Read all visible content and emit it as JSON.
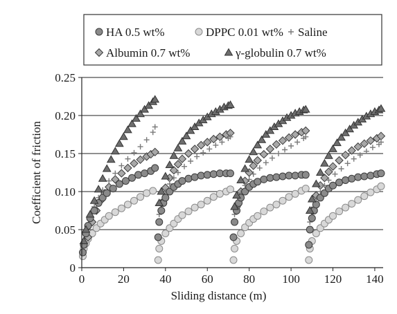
{
  "chart_data": {
    "type": "scatter",
    "xlabel": "Sliding distance (m)",
    "ylabel": "Coefficient of friction",
    "xlim": [
      0,
      144
    ],
    "ylim": [
      0,
      0.25
    ],
    "x_ticks": [
      "0",
      "20",
      "40",
      "60",
      "80",
      "100",
      "120",
      "140"
    ],
    "x_tick_values": [
      0,
      20,
      40,
      60,
      80,
      100,
      120,
      140
    ],
    "y_ticks": [
      "0",
      "0.05",
      "0.10",
      "0.15",
      "0.20",
      "0.25"
    ],
    "y_tick_values": [
      0,
      0.05,
      0.1,
      0.15,
      0.2,
      0.25
    ],
    "grid": "horizontal",
    "legend_position": "top",
    "segments": [
      [
        0,
        36
      ],
      [
        36,
        72
      ],
      [
        72,
        108
      ],
      [
        108,
        144
      ]
    ],
    "series": [
      {
        "name": "HA 0.5 wt%",
        "marker": "circle-dark",
        "color": "#8a8a8a",
        "segments": [
          {
            "x": [
              0.5,
              1,
              2,
              3,
              4,
              6,
              8,
              10,
              12,
              15,
              18,
              21,
              24,
              27,
              30,
              33,
              35
            ],
            "y": [
              0.02,
              0.03,
              0.045,
              0.055,
              0.065,
              0.075,
              0.085,
              0.092,
              0.098,
              0.104,
              0.11,
              0.114,
              0.118,
              0.122,
              0.124,
              0.127,
              0.131
            ]
          },
          {
            "x": [
              36.5,
              37,
              38,
              39,
              40,
              42,
              44,
              46,
              48,
              51,
              54,
              57,
              60,
              63,
              66,
              69,
              71
            ],
            "y": [
              0.04,
              0.06,
              0.075,
              0.085,
              0.092,
              0.1,
              0.106,
              0.11,
              0.114,
              0.117,
              0.119,
              0.121,
              0.122,
              0.123,
              0.124,
              0.124,
              0.124
            ]
          },
          {
            "x": [
              72.5,
              73,
              74,
              75,
              76,
              78,
              80,
              82,
              84,
              87,
              90,
              93,
              96,
              99,
              102,
              105,
              107
            ],
            "y": [
              0.04,
              0.06,
              0.075,
              0.085,
              0.092,
              0.1,
              0.106,
              0.11,
              0.113,
              0.116,
              0.118,
              0.119,
              0.12,
              0.121,
              0.121,
              0.122,
              0.122
            ]
          },
          {
            "x": [
              108.5,
              109,
              110,
              111,
              112,
              114,
              116,
              118,
              120,
              123,
              126,
              129,
              132,
              135,
              138,
              141,
              143
            ],
            "y": [
              0.03,
              0.05,
              0.065,
              0.075,
              0.083,
              0.092,
              0.098,
              0.104,
              0.108,
              0.112,
              0.115,
              0.117,
              0.119,
              0.12,
              0.121,
              0.123,
              0.124
            ]
          }
        ]
      },
      {
        "name": "DPPC 0.01 wt%",
        "marker": "circle-open",
        "color": "#d8d8d8",
        "segments": [
          {
            "x": [
              0.5,
              1,
              2,
              3,
              5,
              7,
              9,
              11,
              13,
              16,
              19,
              22,
              25,
              28,
              31,
              34
            ],
            "y": [
              0.015,
              0.025,
              0.032,
              0.038,
              0.045,
              0.052,
              0.058,
              0.063,
              0.068,
              0.073,
              0.078,
              0.083,
              0.088,
              0.093,
              0.098,
              0.101
            ]
          },
          {
            "x": [
              36.5,
              37,
              38,
              40,
              42,
              44,
              46,
              48,
              51,
              54,
              57,
              60,
              63,
              66,
              69,
              71
            ],
            "y": [
              0.01,
              0.025,
              0.035,
              0.045,
              0.052,
              0.058,
              0.064,
              0.069,
              0.074,
              0.079,
              0.083,
              0.088,
              0.093,
              0.097,
              0.1,
              0.103
            ]
          },
          {
            "x": [
              72.5,
              73,
              74,
              76,
              78,
              80,
              82,
              84,
              87,
              90,
              93,
              96,
              99,
              102,
              105,
              107
            ],
            "y": [
              0.01,
              0.025,
              0.035,
              0.045,
              0.053,
              0.059,
              0.064,
              0.068,
              0.074,
              0.079,
              0.083,
              0.088,
              0.093,
              0.097,
              0.101,
              0.104
            ]
          },
          {
            "x": [
              108.5,
              109,
              110,
              112,
              114,
              116,
              118,
              120,
              123,
              126,
              129,
              132,
              135,
              138,
              141,
              143
            ],
            "y": [
              0.01,
              0.025,
              0.035,
              0.045,
              0.052,
              0.058,
              0.063,
              0.068,
              0.074,
              0.079,
              0.084,
              0.089,
              0.094,
              0.099,
              0.103,
              0.107
            ]
          }
        ]
      },
      {
        "name": "Saline",
        "marker": "plus",
        "color": "#7a7a7a",
        "segments": [
          {
            "x": [
              1,
              2,
              4,
              6,
              8,
              10,
              13,
              16,
              19,
              22,
              25,
              28,
              31,
              34,
              35
            ],
            "y": [
              0.03,
              0.045,
              0.065,
              0.08,
              0.092,
              0.102,
              0.114,
              0.124,
              0.134,
              0.143,
              0.151,
              0.159,
              0.168,
              0.178,
              0.185
            ]
          },
          {
            "x": [
              37,
              38,
              40,
              42,
              44,
              46,
              49,
              52,
              55,
              58,
              61,
              64,
              67,
              70,
              71
            ],
            "y": [
              0.07,
              0.085,
              0.1,
              0.11,
              0.118,
              0.125,
              0.133,
              0.14,
              0.146,
              0.151,
              0.156,
              0.161,
              0.165,
              0.17,
              0.172
            ]
          },
          {
            "x": [
              73,
              74,
              76,
              78,
              80,
              82,
              85,
              88,
              91,
              94,
              97,
              100,
              103,
              106,
              107
            ],
            "y": [
              0.07,
              0.085,
              0.098,
              0.108,
              0.116,
              0.123,
              0.131,
              0.138,
              0.144,
              0.15,
              0.155,
              0.16,
              0.165,
              0.17,
              0.172
            ]
          },
          {
            "x": [
              109,
              110,
              112,
              114,
              116,
              118,
              121,
              124,
              127,
              130,
              133,
              136,
              139,
              142,
              143
            ],
            "y": [
              0.06,
              0.075,
              0.09,
              0.1,
              0.108,
              0.115,
              0.123,
              0.13,
              0.137,
              0.143,
              0.148,
              0.153,
              0.158,
              0.162,
              0.165
            ]
          }
        ]
      },
      {
        "name": "Albumin 0.7 wt%",
        "marker": "diamond",
        "color": "#a8a8a8",
        "segments": [
          {
            "x": [
              3,
              5,
              7,
              9,
              11,
              13,
              16,
              19,
              22,
              25,
              28,
              31,
              33,
              35
            ],
            "y": [
              0.04,
              0.06,
              0.075,
              0.088,
              0.098,
              0.106,
              0.116,
              0.124,
              0.131,
              0.137,
              0.142,
              0.146,
              0.149,
              0.152
            ]
          },
          {
            "x": [
              38,
              40,
              42,
              44,
              46,
              48,
              51,
              54,
              57,
              60,
              63,
              66,
              69,
              71
            ],
            "y": [
              0.085,
              0.105,
              0.118,
              0.128,
              0.136,
              0.143,
              0.15,
              0.156,
              0.161,
              0.165,
              0.169,
              0.172,
              0.175,
              0.177
            ]
          },
          {
            "x": [
              74,
              76,
              78,
              80,
              82,
              84,
              87,
              90,
              93,
              96,
              99,
              102,
              105,
              107
            ],
            "y": [
              0.08,
              0.1,
              0.114,
              0.125,
              0.134,
              0.141,
              0.149,
              0.156,
              0.162,
              0.167,
              0.171,
              0.175,
              0.178,
              0.18
            ]
          },
          {
            "x": [
              110,
              112,
              114,
              116,
              118,
              120,
              123,
              126,
              129,
              132,
              135,
              138,
              141,
              143
            ],
            "y": [
              0.075,
              0.095,
              0.108,
              0.118,
              0.126,
              0.133,
              0.141,
              0.148,
              0.154,
              0.159,
              0.163,
              0.167,
              0.17,
              0.173
            ]
          }
        ]
      },
      {
        "name": "γ-globulin 0.7 wt%",
        "marker": "triangle",
        "color": "#6e6e6e",
        "segments": [
          {
            "x": [
              1,
              2,
              4,
              6,
              8,
              10,
              12,
              14,
              16,
              18,
              20,
              22,
              24,
              26,
              28,
              30,
              32,
              34,
              35
            ],
            "y": [
              0.035,
              0.05,
              0.07,
              0.088,
              0.103,
              0.117,
              0.13,
              0.142,
              0.153,
              0.163,
              0.172,
              0.181,
              0.189,
              0.196,
              0.202,
              0.208,
              0.213,
              0.218,
              0.221
            ]
          },
          {
            "x": [
              37,
              38,
              40,
              42,
              44,
              46,
              48,
              50,
              52,
              54,
              56,
              58,
              60,
              62,
              64,
              66,
              68,
              70,
              71
            ],
            "y": [
              0.085,
              0.1,
              0.12,
              0.135,
              0.147,
              0.157,
              0.166,
              0.173,
              0.18,
              0.185,
              0.19,
              0.194,
              0.198,
              0.202,
              0.205,
              0.208,
              0.211,
              0.213,
              0.214
            ]
          },
          {
            "x": [
              73,
              74,
              76,
              78,
              80,
              82,
              84,
              86,
              88,
              90,
              92,
              94,
              96,
              98,
              100,
              102,
              104,
              106,
              107
            ],
            "y": [
              0.08,
              0.095,
              0.115,
              0.13,
              0.142,
              0.152,
              0.161,
              0.168,
              0.175,
              0.18,
              0.185,
              0.189,
              0.193,
              0.197,
              0.2,
              0.203,
              0.205,
              0.207,
              0.208
            ]
          },
          {
            "x": [
              109,
              110,
              112,
              114,
              116,
              118,
              120,
              122,
              124,
              126,
              128,
              130,
              132,
              134,
              136,
              138,
              140,
              142,
              143
            ],
            "y": [
              0.075,
              0.09,
              0.11,
              0.125,
              0.137,
              0.147,
              0.156,
              0.164,
              0.171,
              0.177,
              0.182,
              0.187,
              0.191,
              0.195,
              0.199,
              0.202,
              0.205,
              0.207,
              0.209
            ]
          }
        ]
      }
    ]
  }
}
